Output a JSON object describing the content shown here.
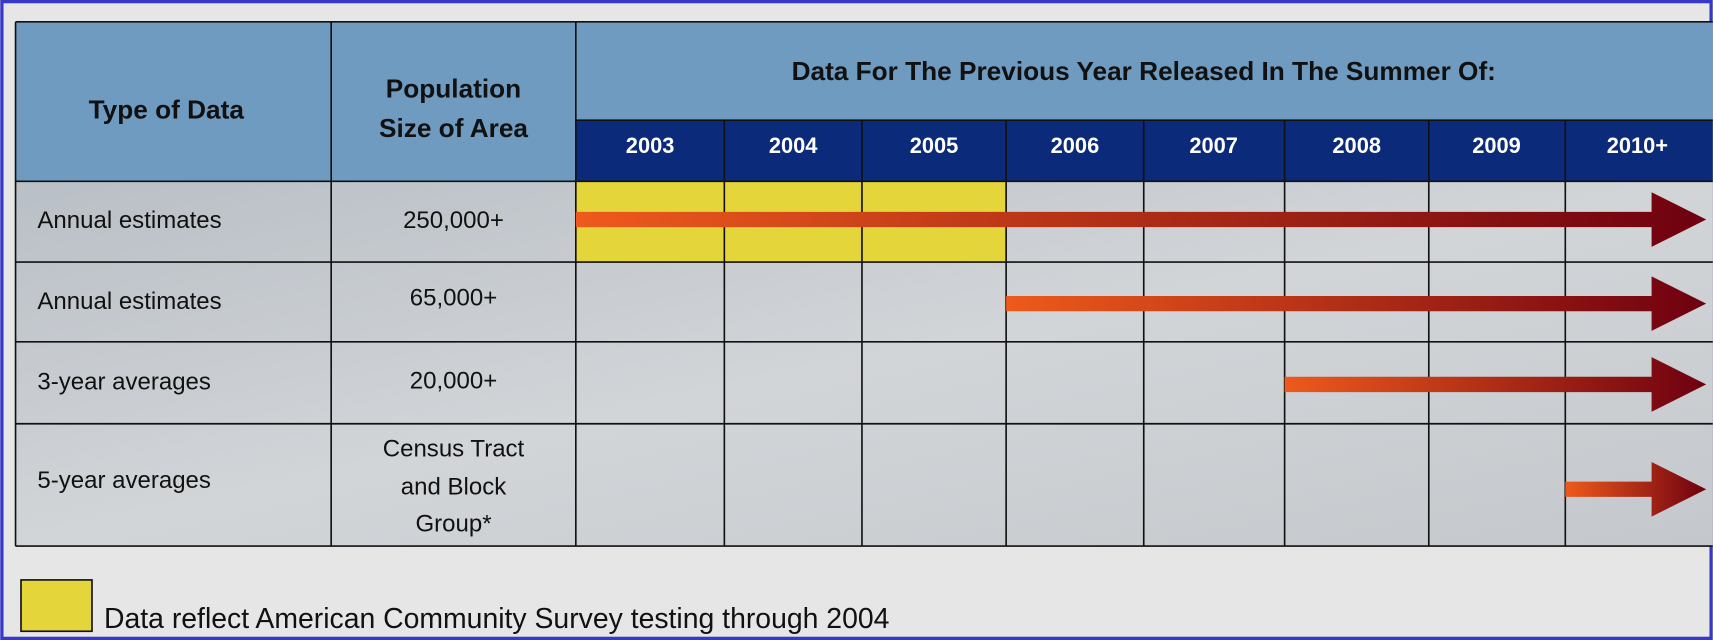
{
  "header": {
    "type_of_data": "Type of Data",
    "population": [
      "Population",
      "Size of Area"
    ],
    "release": "Data For The Previous Year Released In The Summer Of:",
    "years": [
      "2003",
      "2004",
      "2005",
      "2006",
      "2007",
      "2008",
      "2009",
      "2010+"
    ]
  },
  "rows": [
    {
      "type": "Annual estimates",
      "population": [
        "250,000+"
      ]
    },
    {
      "type": "Annual estimates",
      "population": [
        "65,000+"
      ]
    },
    {
      "type": "3-year averages",
      "population": [
        "20,000+"
      ]
    },
    {
      "type": "5-year averages",
      "population": [
        "Census Tract",
        "and Block",
        "Group*"
      ]
    }
  ],
  "legend": {
    "text": "Data reflect American Community Survey testing through 2004"
  }
}
